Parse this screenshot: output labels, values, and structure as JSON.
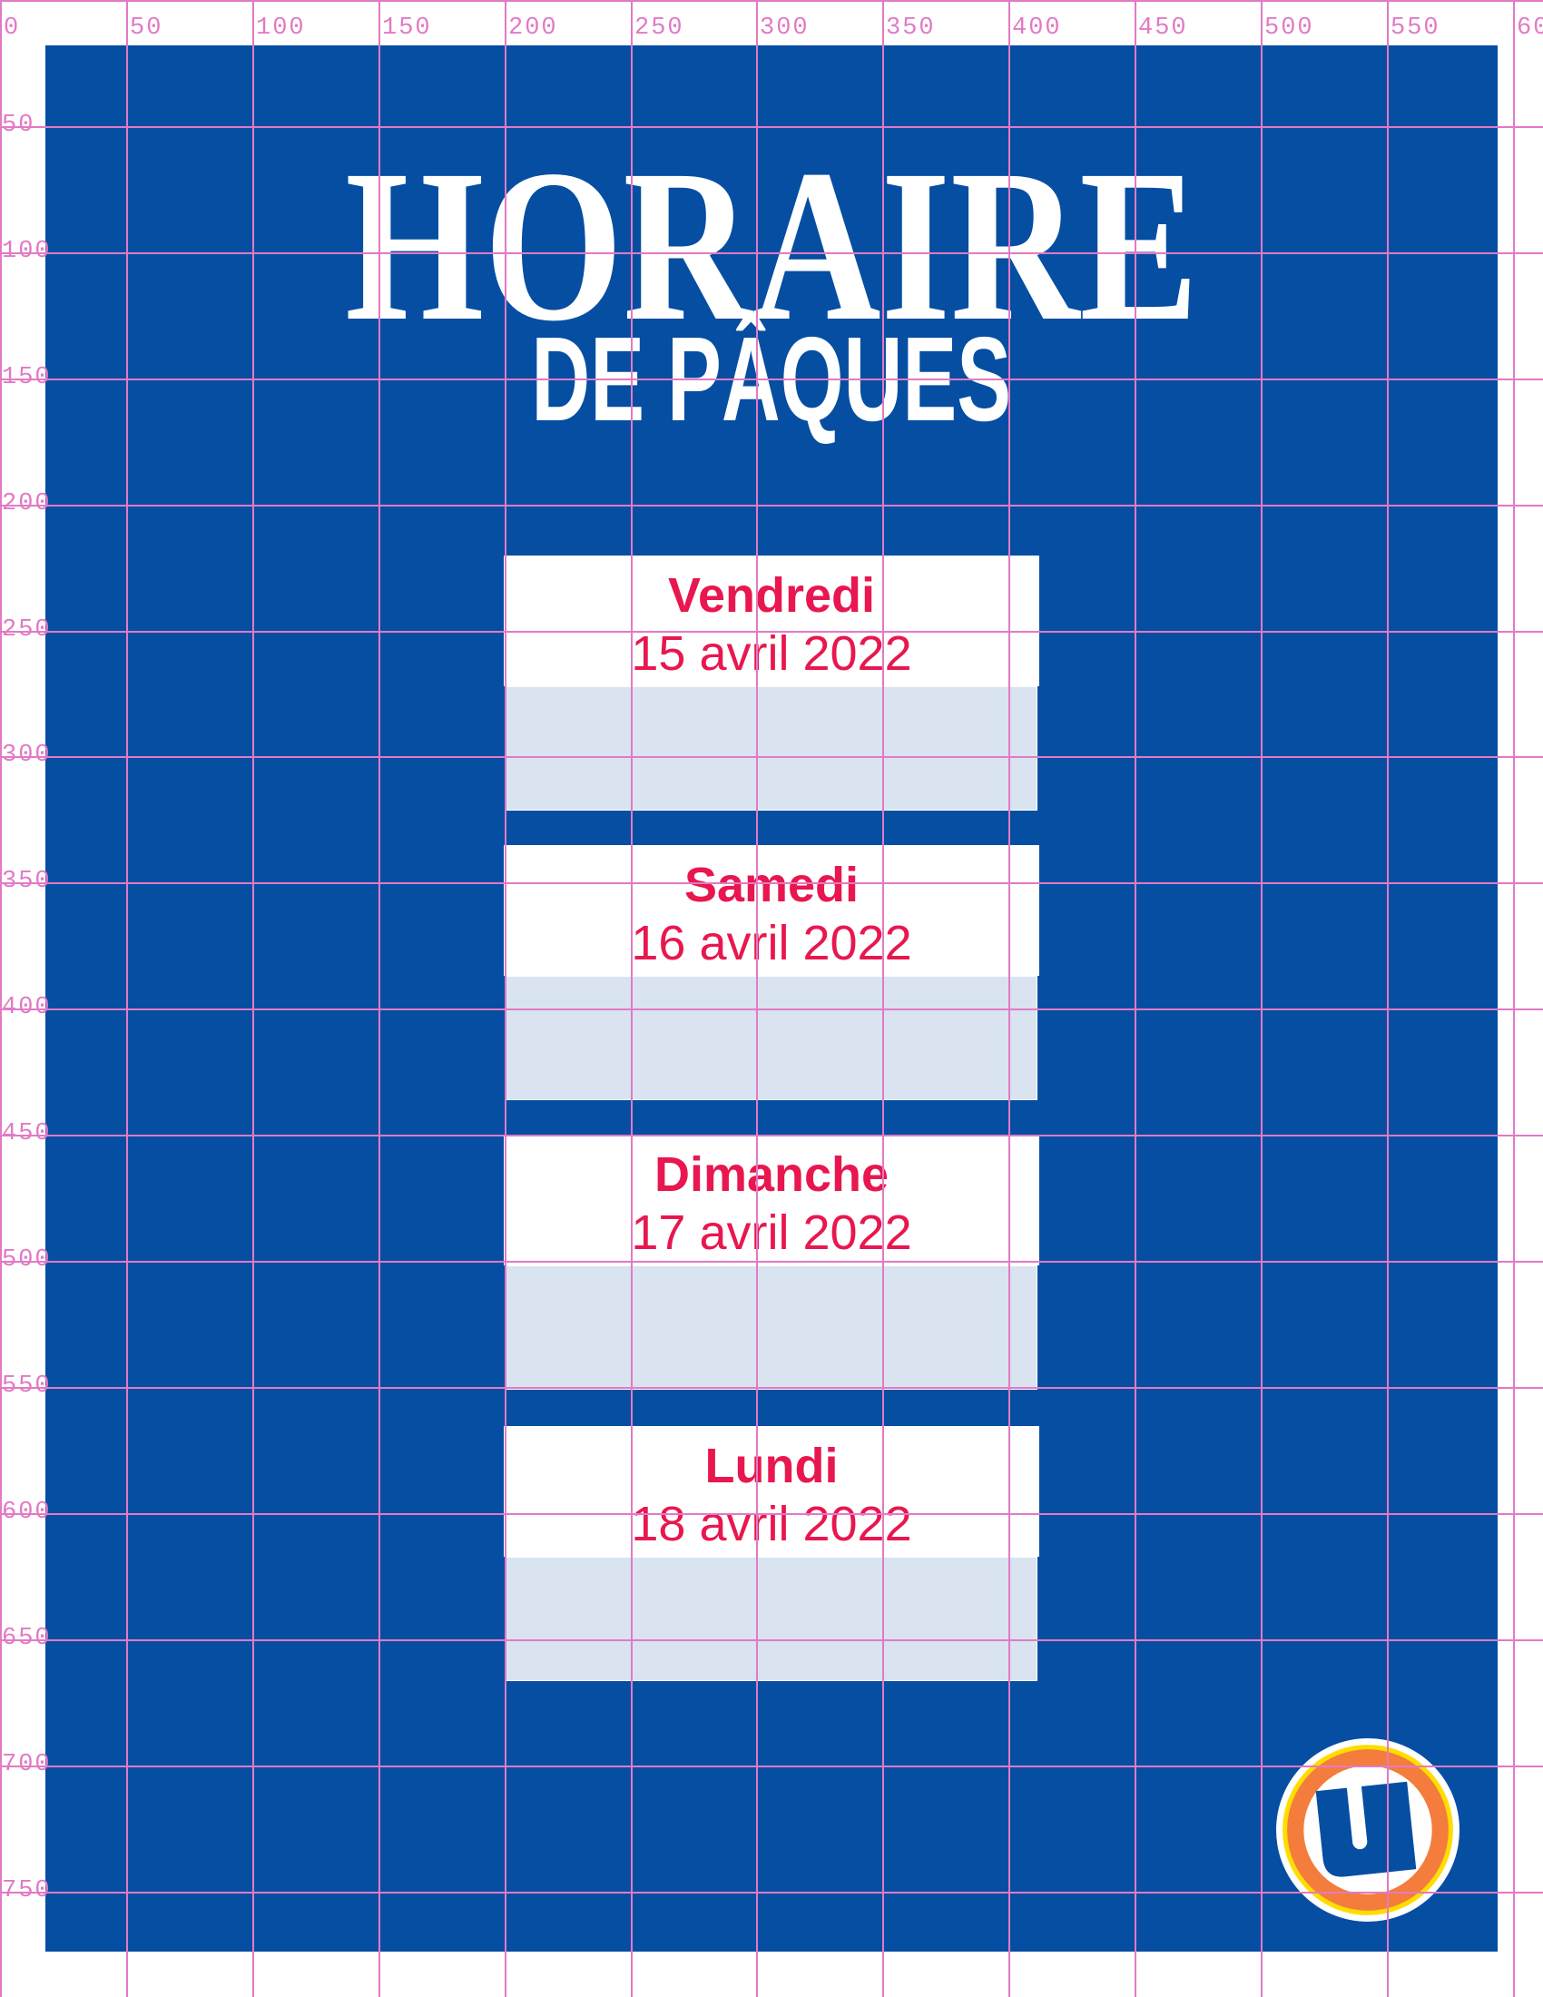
{
  "title": {
    "main": "HORAIRE",
    "sub": "DE PÂQUES"
  },
  "days": [
    {
      "day": "Vendredi",
      "date": "15 avril 2022"
    },
    {
      "day": "Samedi",
      "date": "16 avril 2022"
    },
    {
      "day": "Dimanche",
      "date": "17 avril 2022"
    },
    {
      "day": "Lundi",
      "date": "18 avril 2022"
    }
  ],
  "ruler": {
    "x_labels": [
      "0",
      "50",
      "100",
      "150",
      "200",
      "250",
      "300",
      "350",
      "400",
      "450",
      "500",
      "550",
      "60"
    ],
    "y_labels": [
      "50",
      "100",
      "150",
      "200",
      "250",
      "300",
      "350",
      "400",
      "450",
      "500",
      "550",
      "600",
      "650",
      "700",
      "750"
    ]
  },
  "logo": {
    "icon": "magasins-u-logo",
    "text": "U"
  },
  "colors": {
    "background": "#054ea2",
    "accent": "#e8174f",
    "card_body": "#d9e4f0",
    "guides": "#e27ac4",
    "logo_orange": "#f47c3c",
    "logo_yellow": "#ffdd00"
  }
}
